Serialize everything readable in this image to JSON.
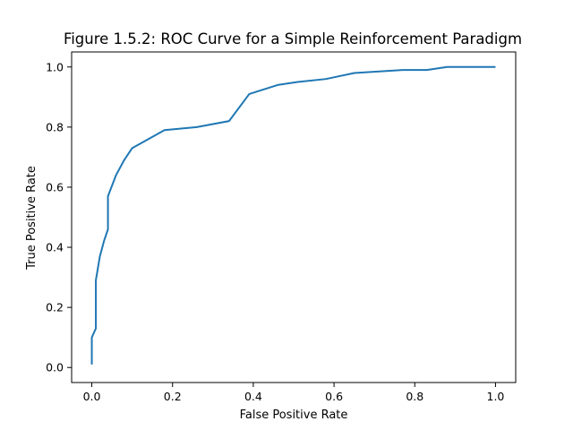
{
  "chart_data": {
    "type": "line",
    "title": "Figure 1.5.2: ROC Curve for a Simple Reinforcement Paradigm",
    "xlabel": "False Positive Rate",
    "ylabel": "True Positive Rate",
    "xlim": [
      -0.05,
      1.05
    ],
    "ylim": [
      -0.05,
      1.05
    ],
    "xticks": [
      0.0,
      0.2,
      0.4,
      0.6,
      0.8,
      1.0
    ],
    "yticks": [
      0.0,
      0.2,
      0.4,
      0.6,
      0.8,
      1.0
    ],
    "xtick_labels": [
      "0.0",
      "0.2",
      "0.4",
      "0.6",
      "0.8",
      "1.0"
    ],
    "ytick_labels": [
      "0.0",
      "0.2",
      "0.4",
      "0.6",
      "0.8",
      "1.0"
    ],
    "grid": false,
    "line_color": "#1f77b4",
    "series": [
      {
        "x": [
          0.0,
          0.0,
          0.0,
          0.01,
          0.01,
          0.02,
          0.03,
          0.04,
          0.04,
          0.06,
          0.08,
          0.1,
          0.18,
          0.26,
          0.34,
          0.39,
          0.46,
          0.51,
          0.58,
          0.65,
          0.77,
          0.83,
          0.88,
          1.0
        ],
        "y": [
          0.01,
          0.1,
          0.1,
          0.13,
          0.29,
          0.37,
          0.42,
          0.46,
          0.57,
          0.64,
          0.69,
          0.73,
          0.79,
          0.8,
          0.82,
          0.91,
          0.94,
          0.95,
          0.96,
          0.98,
          0.99,
          0.99,
          1.0,
          1.0
        ]
      }
    ]
  }
}
